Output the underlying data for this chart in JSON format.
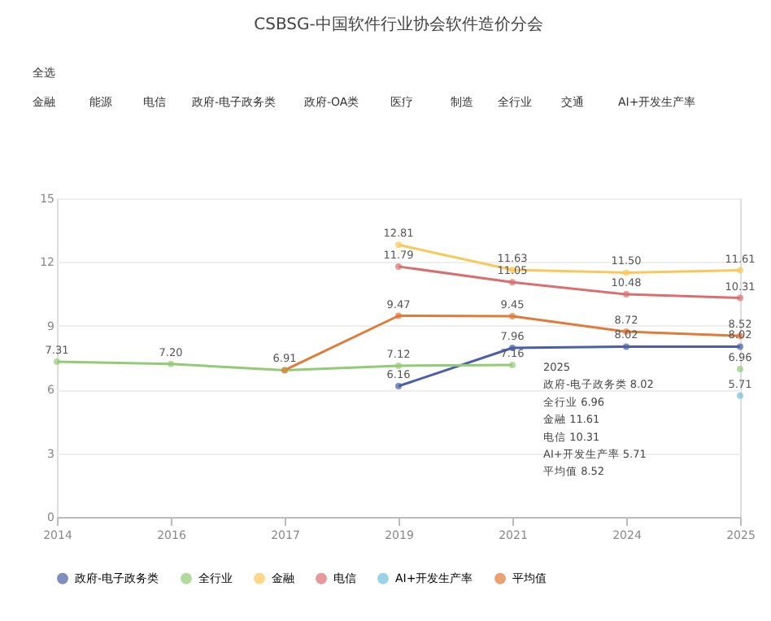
{
  "chart_data": {
    "type": "line",
    "title": "CSBSG-中国软件行业协会软件造价分会",
    "categories": [
      "2014",
      "2016",
      "2017",
      "2019",
      "2021",
      "2024",
      "2025"
    ],
    "series": [
      {
        "name": "政府-电子政务类",
        "color": "#4a5fa8",
        "values": [
          null,
          null,
          null,
          6.16,
          7.96,
          8.02,
          8.02
        ],
        "value_labels": [
          null,
          null,
          null,
          "6.16",
          "7.96",
          "8.02",
          "8.02"
        ]
      },
      {
        "name": "全行业",
        "color": "#91cc75",
        "values": [
          7.31,
          7.2,
          6.91,
          7.12,
          7.16,
          null,
          6.96
        ],
        "value_labels": [
          "7.31",
          "7.20",
          "6.91",
          "7.12",
          "7.16",
          null,
          "6.96"
        ]
      },
      {
        "name": "金融",
        "color": "#fac858",
        "values": [
          null,
          null,
          null,
          12.81,
          11.63,
          11.5,
          11.61
        ],
        "value_labels": [
          null,
          null,
          null,
          "12.81",
          "11.63",
          "11.50",
          "11.61"
        ]
      },
      {
        "name": "电信",
        "color": "#d9706f",
        "values": [
          null,
          null,
          null,
          11.79,
          11.05,
          10.48,
          10.31
        ],
        "value_labels": [
          null,
          null,
          null,
          "11.79",
          "11.05",
          "10.48",
          "10.31"
        ]
      },
      {
        "name": "AI+开发生产率",
        "color": "#73c0de",
        "values": [
          null,
          null,
          null,
          null,
          null,
          null,
          5.71
        ],
        "value_labels": [
          null,
          null,
          null,
          null,
          null,
          null,
          "5.71"
        ]
      },
      {
        "name": "平均值",
        "color": "#e07b39",
        "values": [
          null,
          null,
          6.91,
          9.47,
          9.45,
          8.72,
          8.52
        ],
        "value_labels": [
          null,
          null,
          null,
          "9.47",
          "9.45",
          "8.72",
          "8.52"
        ]
      }
    ],
    "ylim": [
      0,
      15
    ],
    "yticks": [
      0,
      3,
      6,
      9,
      12,
      15
    ],
    "grid": "y",
    "legend": "bottom",
    "marker": "circle",
    "line_style": "solid",
    "annotations": [
      "全选",
      "金融",
      "能源",
      "电信",
      "政府-电子政务类",
      "政府-OA类",
      "医疗",
      "制造",
      "全行业",
      "交通",
      "AI+开发生产率",
      "2025",
      "政府-电子政务类  8.02",
      "全行业  6.96",
      "金融  11.61",
      "电信  10.31",
      "AI+开发生产率  5.71",
      "平均值  8.52"
    ]
  }
}
